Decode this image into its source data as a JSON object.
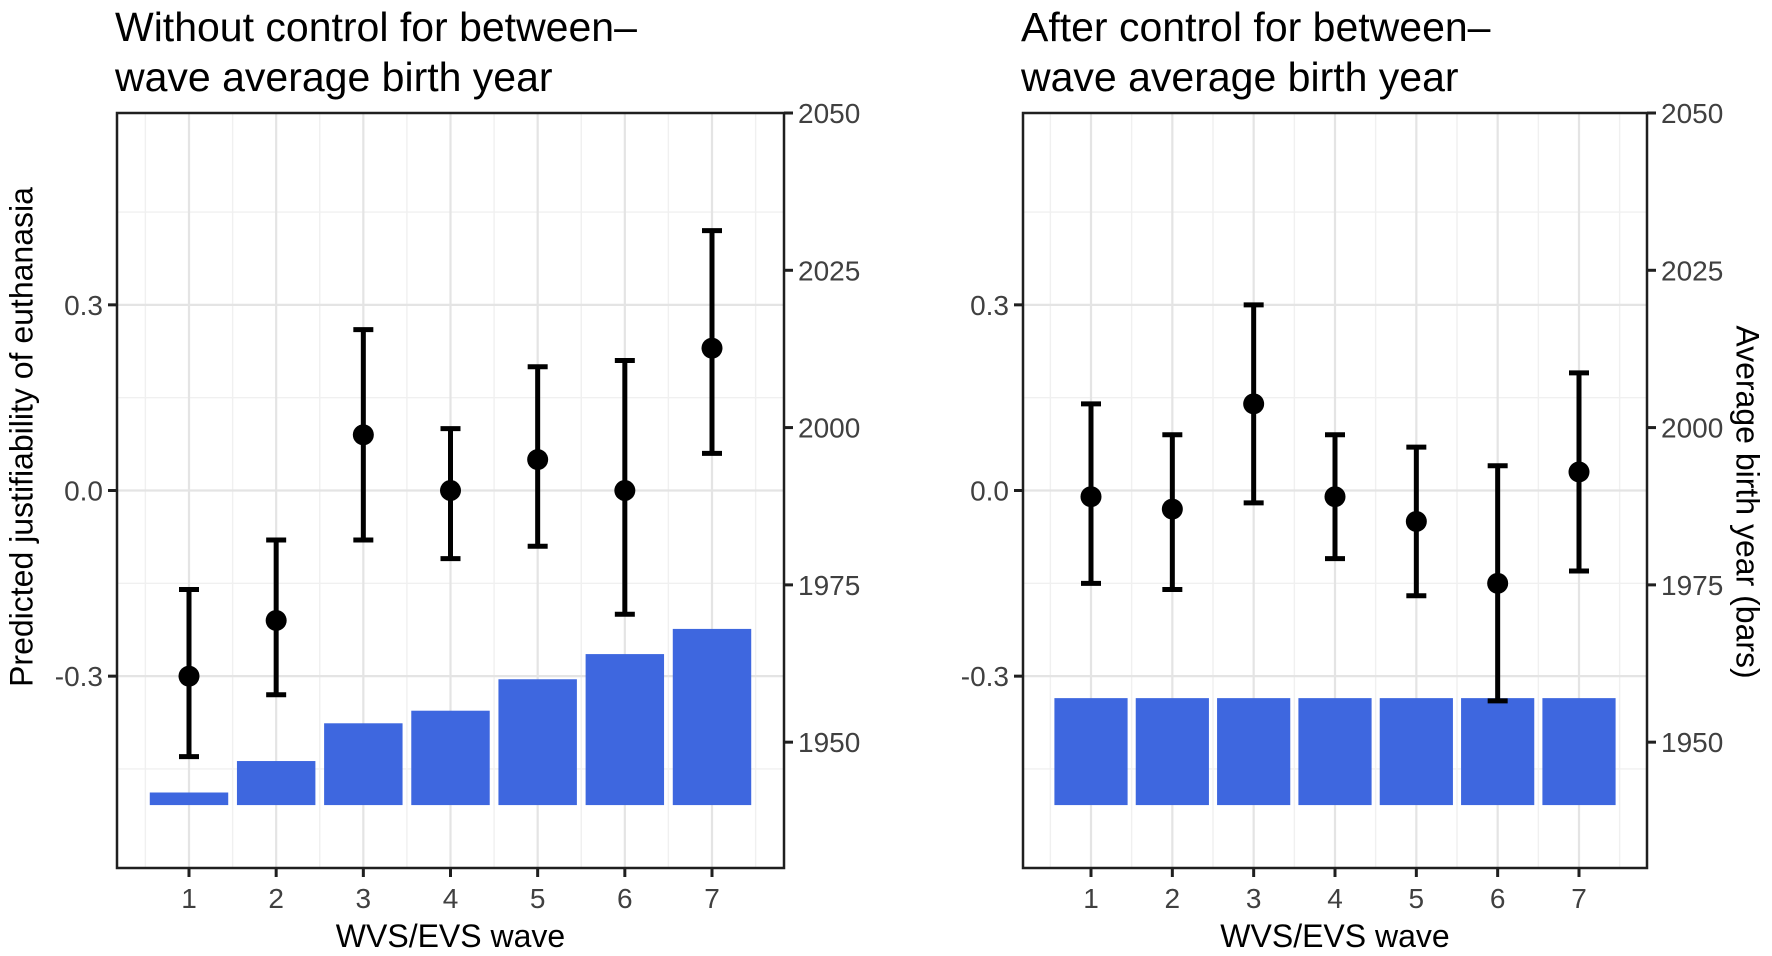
{
  "figure": {
    "background": "#ffffff",
    "y_axis_left_label": "Predicted justifiability of euthanasia",
    "y_axis_right_label": "Average birth year (bars)"
  },
  "panels": [
    {
      "id": "left",
      "title_lines": [
        "Without control for between–",
        "wave average birth year"
      ],
      "x_axis_label": "WVS/EVS wave"
    },
    {
      "id": "right",
      "title_lines": [
        "After control for between–",
        "wave average birth year"
      ],
      "x_axis_label": "WVS/EVS wave"
    }
  ],
  "colors": {
    "bar": "#3e67df",
    "point": "#000000",
    "errorbar": "#000000",
    "grid_major": "#e4e4e4",
    "grid_minor": "#f0f0f0",
    "panel_border": "#1f1f1f",
    "tick": "#1f1f1f",
    "tick_label": "#404040",
    "axis_title": "#000000"
  },
  "chart_data": [
    {
      "type": "bar",
      "subtype": "bar-plus-pointrange",
      "title": "Without control for between–wave average birth year",
      "xlabel": "WVS/EVS wave",
      "ylabel_left": "Predicted justifiability of euthanasia",
      "ylabel_right": "Average birth year (bars)",
      "categories": [
        1,
        2,
        3,
        4,
        5,
        6,
        7
      ],
      "series": [
        {
          "name": "predicted-justifiability-points",
          "type": "pointrange",
          "axis": "left",
          "values": [
            -0.3,
            -0.21,
            0.09,
            0.0,
            0.05,
            0.0,
            0.23
          ],
          "ci_lower": [
            -0.43,
            -0.33,
            -0.08,
            -0.11,
            -0.09,
            -0.2,
            0.06
          ],
          "ci_upper": [
            -0.16,
            -0.08,
            0.26,
            0.1,
            0.2,
            0.21,
            0.42
          ]
        },
        {
          "name": "average-birth-year-bars",
          "type": "bar",
          "axis": "right",
          "values": [
            1942,
            1947,
            1953,
            1955,
            1960,
            1964,
            1968
          ],
          "base": 1940
        }
      ],
      "y_left_ticks": [
        0.3,
        0.0,
        -0.3
      ],
      "ylim_left": [
        -0.61,
        0.61
      ],
      "y_right_ticks": [
        2050,
        2025,
        2000,
        1975,
        1950
      ],
      "ylim_right": [
        1930,
        2050
      ],
      "grid": "major+minor",
      "legend": "none"
    },
    {
      "type": "bar",
      "subtype": "bar-plus-pointrange",
      "title": "After control for between–wave average birth year",
      "xlabel": "WVS/EVS wave",
      "ylabel_left": "Predicted justifiability of euthanasia",
      "ylabel_right": "Average birth year (bars)",
      "categories": [
        1,
        2,
        3,
        4,
        5,
        6,
        7
      ],
      "series": [
        {
          "name": "predicted-justifiability-points",
          "type": "pointrange",
          "axis": "left",
          "values": [
            -0.01,
            -0.03,
            0.14,
            -0.01,
            -0.05,
            -0.15,
            0.03
          ],
          "ci_lower": [
            -0.15,
            -0.16,
            -0.02,
            -0.11,
            -0.17,
            -0.34,
            -0.13
          ],
          "ci_upper": [
            0.14,
            0.09,
            0.3,
            0.09,
            0.07,
            0.04,
            0.19
          ]
        },
        {
          "name": "average-birth-year-bars",
          "type": "bar",
          "axis": "right",
          "values": [
            1957,
            1957,
            1957,
            1957,
            1957,
            1957,
            1957
          ],
          "base": 1940
        }
      ],
      "y_left_ticks": [
        0.3,
        0.0,
        -0.3
      ],
      "ylim_left": [
        -0.61,
        0.61
      ],
      "y_right_ticks": [
        2050,
        2025,
        2000,
        1975,
        1950
      ],
      "ylim_right": [
        1930,
        2050
      ],
      "grid": "major+minor",
      "legend": "none"
    }
  ]
}
